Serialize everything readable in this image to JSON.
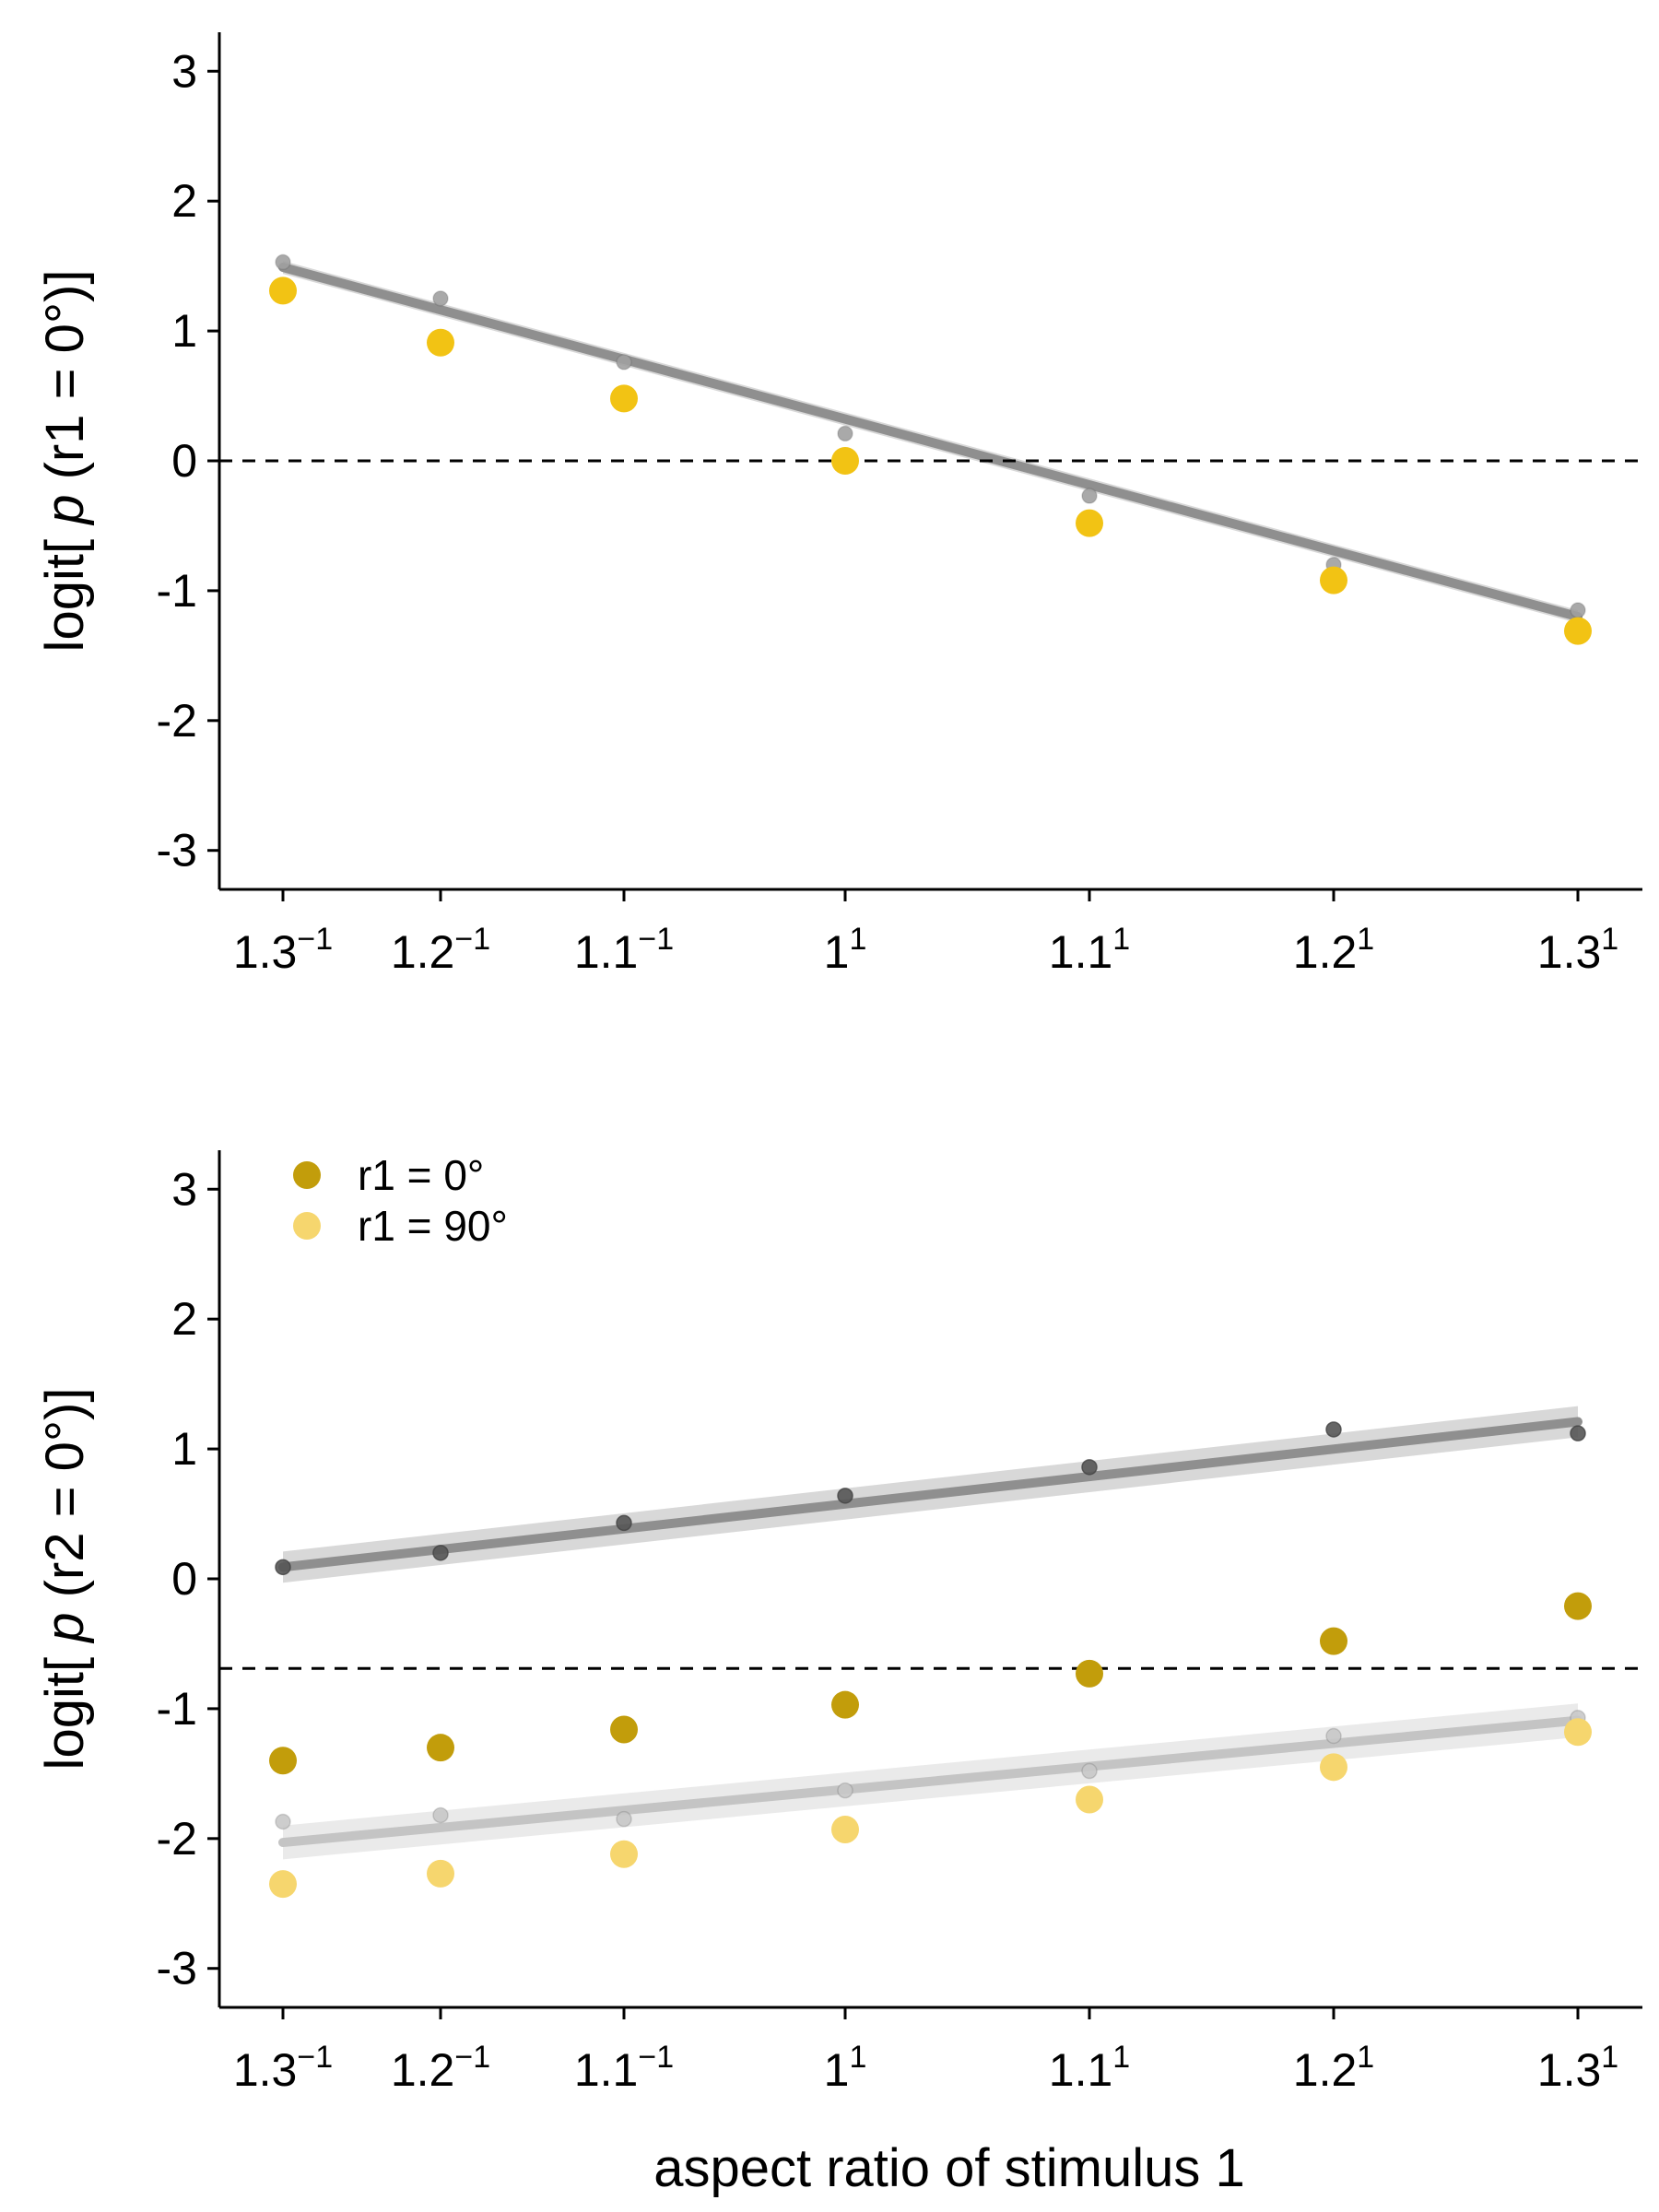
{
  "colors": {
    "r1_0": "#c29d0b",
    "r1_90": "#f6d66e",
    "panel1_points": "#f2c314",
    "model_dark": "#8f8f8f",
    "model_light": "#c4c4c4"
  },
  "chart_data": [
    {
      "type": "scatter",
      "ylabel_prefix": "logit[ ",
      "ylabel_italic": "p",
      "ylabel_suffix": " (r1 = 0°)]",
      "xlabel": "",
      "x_scale": "log",
      "ylim": [
        -3.3,
        3.3
      ],
      "y_ticks": [
        "-3",
        "-2",
        "-1",
        "0",
        "1",
        "2",
        "3"
      ],
      "x_ticks": [
        {
          "base": "1.3",
          "exp": "−1"
        },
        {
          "base": "1.2",
          "exp": "−1"
        },
        {
          "base": "1.1",
          "exp": "−1"
        },
        {
          "base": "1",
          "exp": "1"
        },
        {
          "base": "1.1",
          "exp": "1"
        },
        {
          "base": "1.2",
          "exp": "1"
        },
        {
          "base": "1.3",
          "exp": "1"
        }
      ],
      "x": [
        -1.3,
        -1.2,
        -1.1,
        1.0,
        1.1,
        1.2,
        1.3
      ],
      "reference_line_y": 0,
      "series": [
        {
          "values": [
            1.31,
            0.91,
            0.48,
            0.0,
            -0.48,
            -0.92,
            -1.31
          ],
          "color": "#f2c314"
        }
      ],
      "model_points": [
        {
          "values": [
            1.53,
            1.25,
            0.76,
            0.21,
            -0.27,
            -0.8,
            -1.15
          ],
          "color": "#a0a0a0"
        }
      ],
      "fits": [
        {
          "start": 1.49,
          "end": -1.2,
          "color": "#8f8f8f",
          "band": 0.05
        }
      ]
    },
    {
      "type": "scatter",
      "ylabel_prefix": "logit[ ",
      "ylabel_italic": "p",
      "ylabel_suffix": " (r2 = 0°)]",
      "xlabel": "aspect ratio of stimulus 1",
      "x_scale": "log",
      "ylim": [
        -3.3,
        3.3
      ],
      "y_ticks": [
        "-3",
        "-2",
        "-1",
        "0",
        "1",
        "2",
        "3"
      ],
      "x_ticks": [
        {
          "base": "1.3",
          "exp": "−1"
        },
        {
          "base": "1.2",
          "exp": "−1"
        },
        {
          "base": "1.1",
          "exp": "−1"
        },
        {
          "base": "1",
          "exp": "1"
        },
        {
          "base": "1.1",
          "exp": "1"
        },
        {
          "base": "1.2",
          "exp": "1"
        },
        {
          "base": "1.3",
          "exp": "1"
        }
      ],
      "x": [
        -1.3,
        -1.2,
        -1.1,
        1.0,
        1.1,
        1.2,
        1.3
      ],
      "reference_line_y": -0.69,
      "legend": {
        "placement": "top-left",
        "entries": [
          {
            "label": "r1 = 0°",
            "color": "#c29d0b"
          },
          {
            "label": "r1 = 90°",
            "color": "#f6d66e"
          }
        ]
      },
      "series": [
        {
          "name": "r1 = 0°",
          "values": [
            -1.4,
            -1.3,
            -1.16,
            -0.97,
            -0.73,
            -0.48,
            -0.21
          ],
          "color": "#c29d0b"
        },
        {
          "name": "r1 = 90°",
          "values": [
            -2.35,
            -2.27,
            -2.12,
            -1.93,
            -1.7,
            -1.45,
            -1.18
          ],
          "color": "#f6d66e"
        }
      ],
      "model_points": [
        {
          "values": [
            0.09,
            0.2,
            0.43,
            0.64,
            0.86,
            1.15,
            1.12
          ],
          "color": "#555555"
        },
        {
          "values": [
            -1.87,
            -1.82,
            -1.85,
            -1.63,
            -1.48,
            -1.21,
            -1.07
          ],
          "color": "#c8c8c8"
        }
      ],
      "fits": [
        {
          "start": 0.09,
          "end": 1.21,
          "color": "#8f8f8f",
          "band": 0.12
        },
        {
          "start": -2.03,
          "end": -1.09,
          "color": "#c4c4c4",
          "band": 0.13
        }
      ]
    }
  ]
}
